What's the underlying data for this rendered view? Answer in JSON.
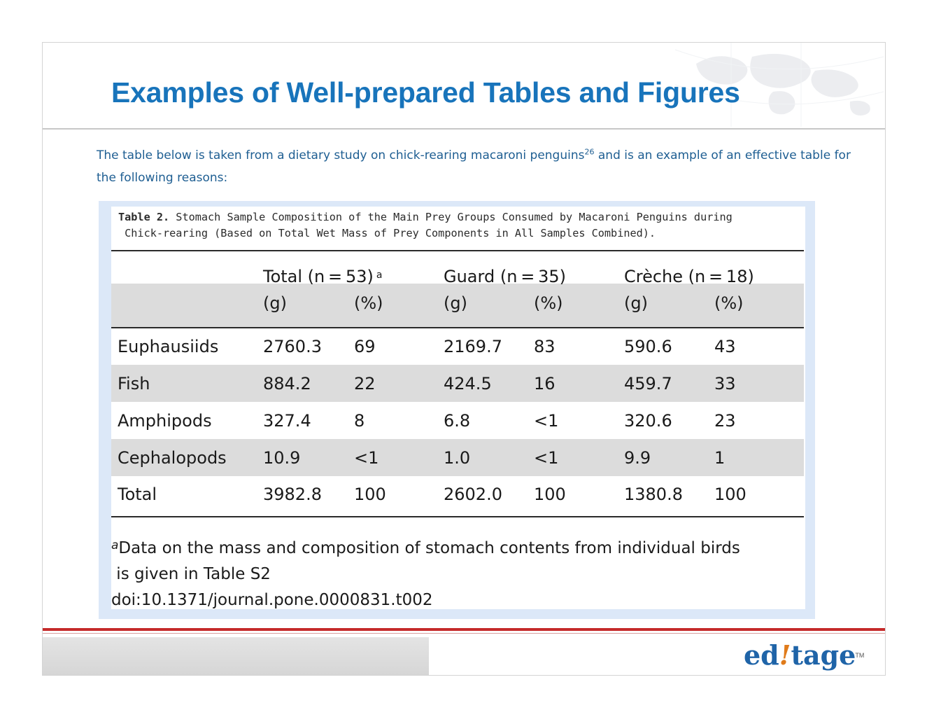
{
  "title": "Examples of Well-prepared Tables and Figures",
  "intro": {
    "text_before": "The table below is taken from a dietary study on chick-rearing macaroni penguins",
    "citation": "26",
    "text_after": " and is an example of an effective table for the following reasons:"
  },
  "figure": {
    "caption_label": "Table 2.",
    "caption_line1": " Stomach Sample Composition of the Main Prey Groups Consumed by Macaroni Penguins during",
    "caption_line2": " Chick-rearing (Based on Total Wet Mass of Prey Components in All Samples Combined).",
    "groups": [
      {
        "label": "Total (n = 53)",
        "marker": "a"
      },
      {
        "label": "Guard (n = 35)",
        "marker": ""
      },
      {
        "label": "Crèche (n = 18)",
        "marker": ""
      }
    ],
    "units": [
      "(g)",
      "(%)",
      "(g)",
      "(%)",
      "(g)",
      "(%)"
    ],
    "rows": [
      {
        "label": "Euphausiids",
        "cells": [
          "2760.3",
          "69",
          "2169.7",
          "83",
          "590.6",
          "43"
        ]
      },
      {
        "label": "Fish",
        "cells": [
          "884.2",
          "22",
          "424.5",
          "16",
          "459.7",
          "33"
        ]
      },
      {
        "label": "Amphipods",
        "cells": [
          "327.4",
          "8",
          "6.8",
          "<1",
          "320.6",
          "23"
        ]
      },
      {
        "label": "Cephalopods",
        "cells": [
          "10.9",
          "<1",
          "1.0",
          "<1",
          "9.9",
          "1"
        ]
      },
      {
        "label": "Total",
        "cells": [
          "3982.8",
          "100",
          "2602.0",
          "100",
          "1380.8",
          "100"
        ]
      }
    ],
    "footnote_marker": "a",
    "footnote_line1": "Data on the mass and composition of stomach contents from individual birds",
    "footnote_line2": " is given in Table S2",
    "doi": "doi:10.1371/journal.pone.0000831.t002"
  },
  "logo": {
    "part1": "ed",
    "part2": "!",
    "part3": "tage",
    "tm": "TM"
  },
  "colors": {
    "title": "#1874bb",
    "intro": "#1e5e92",
    "accent_red": "#c52a2a",
    "figure_bg": "#dce8f8",
    "row_shade": "#dcdcdc"
  }
}
